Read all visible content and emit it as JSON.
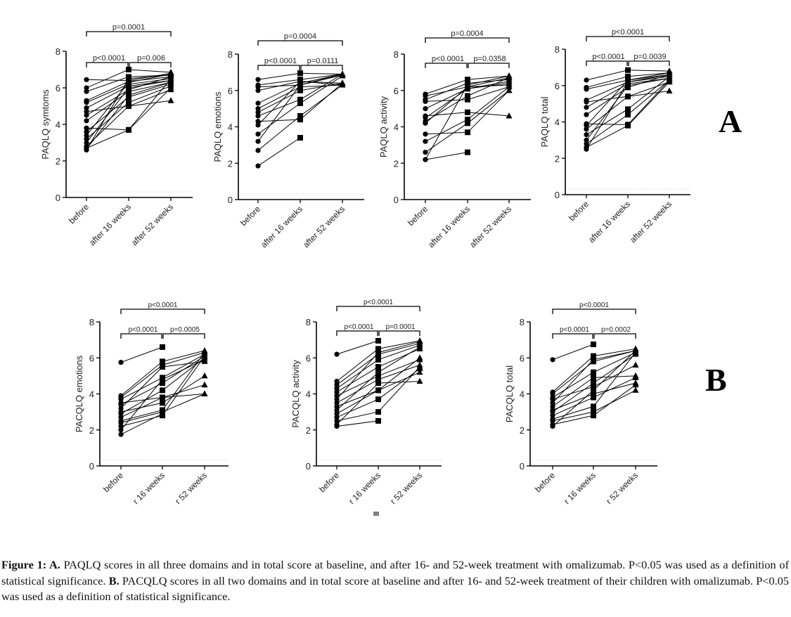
{
  "figure": {
    "panel_letters": {
      "A": "A",
      "B": "B"
    },
    "caption": {
      "prefix": "Figure 1: A.",
      "part_a": " PAQLQ scores in all three domains and in total score at baseline, and after 16- and 52-week treatment with omalizumab. P<0.05 was used as a definition of statistical significance. ",
      "b_label": "B.",
      "part_b": " PACQLQ scores in all two domains and in total score at baseline and after 16- and 52-week treatment of their children with omalizumab. P<0.05 was used as a definition of statistical significance."
    }
  },
  "chart_data": [
    {
      "id": "A1",
      "group": "A",
      "type": "line",
      "ylabel": "PAQLQ symtoms",
      "categories": [
        "before",
        "after 16 weeks",
        "after 52 weeks"
      ],
      "ylim": [
        0,
        8
      ],
      "yticks": [
        0,
        2,
        4,
        6,
        8
      ],
      "pvalues": {
        "overall": "p=0.0001",
        "first": "p<0.0001",
        "second": "p=0.006"
      },
      "series": [
        [
          6.45,
          6.4,
          6.8
        ],
        [
          6.0,
          7.0,
          6.85
        ],
        [
          5.8,
          6.6,
          6.7
        ],
        [
          5.3,
          6.35,
          6.6
        ],
        [
          5.2,
          6.2,
          6.5
        ],
        [
          4.9,
          6.1,
          6.4
        ],
        [
          4.7,
          5.0,
          5.3
        ],
        [
          4.5,
          5.9,
          6.6
        ],
        [
          4.2,
          5.8,
          6.3
        ],
        [
          3.8,
          3.7,
          6.0
        ],
        [
          3.6,
          5.5,
          6.2
        ],
        [
          3.4,
          6.3,
          6.75
        ],
        [
          3.2,
          5.2,
          6.1
        ],
        [
          3.0,
          6.0,
          6.4
        ],
        [
          2.8,
          5.0,
          5.9
        ],
        [
          2.7,
          3.7,
          6.5
        ],
        [
          2.6,
          6.5,
          6.7
        ],
        [
          2.65,
          5.6,
          6.3
        ]
      ]
    },
    {
      "id": "A2",
      "group": "A",
      "type": "line",
      "ylabel": "PAQLQ emotions",
      "categories": [
        "before",
        "after 16 weeks",
        "after 52 weeks"
      ],
      "ylim": [
        0,
        8
      ],
      "yticks": [
        0,
        2,
        4,
        6,
        8
      ],
      "pvalues": {
        "overall": "p=0.0004",
        "first": "p<0.0001",
        "second": "p=0.0111"
      },
      "series": [
        [
          6.6,
          6.95,
          6.9
        ],
        [
          6.3,
          6.6,
          6.9
        ],
        [
          6.2,
          6.3,
          6.85
        ],
        [
          6.0,
          6.5,
          6.4
        ],
        [
          5.3,
          6.4,
          6.9
        ],
        [
          5.0,
          6.2,
          6.3
        ],
        [
          4.8,
          6.0,
          6.4
        ],
        [
          4.6,
          5.5,
          6.9
        ],
        [
          4.3,
          4.4,
          6.4
        ],
        [
          4.1,
          6.5,
          6.3
        ],
        [
          3.6,
          5.3,
          6.8
        ],
        [
          3.2,
          6.3,
          6.9
        ],
        [
          2.7,
          4.6,
          6.3
        ],
        [
          1.85,
          3.4,
          null
        ]
      ]
    },
    {
      "id": "A3",
      "group": "A",
      "type": "line",
      "ylabel": "PAQLQ activity",
      "categories": [
        "before",
        "after 16 weeks",
        "after 52 weeks"
      ],
      "ylim": [
        0,
        8
      ],
      "yticks": [
        0,
        2,
        4,
        6,
        8
      ],
      "pvalues": {
        "overall": "p=0.0004",
        "first": "p<0.0001",
        "second": "p=0.0358"
      },
      "series": [
        [
          5.8,
          6.6,
          6.8
        ],
        [
          5.7,
          6.2,
          6.7
        ],
        [
          5.5,
          6.4,
          6.6
        ],
        [
          5.4,
          5.5,
          6.2
        ],
        [
          5.0,
          6.1,
          6.5
        ],
        [
          4.6,
          4.8,
          4.6
        ],
        [
          4.5,
          6.1,
          6.4
        ],
        [
          4.3,
          5.7,
          6.7
        ],
        [
          4.2,
          6.2,
          6.3
        ],
        [
          3.6,
          3.7,
          6.0
        ],
        [
          3.2,
          4.4,
          6.2
        ],
        [
          2.6,
          4.2,
          6.0
        ],
        [
          2.2,
          2.6,
          null
        ],
        [
          2.2,
          6.3,
          6.8
        ]
      ]
    },
    {
      "id": "A4",
      "group": "A",
      "type": "line",
      "ylabel": "PAQLQ total",
      "categories": [
        "before",
        "after 16 weeks",
        "after 52 weeks"
      ],
      "ylim": [
        0,
        8
      ],
      "yticks": [
        0,
        2,
        4,
        6,
        8
      ],
      "pvalues": {
        "overall": "p<0.0001",
        "first": "p<0.0001",
        "second": "p=0.0039"
      },
      "series": [
        [
          6.3,
          6.85,
          6.8
        ],
        [
          5.9,
          6.5,
          6.7
        ],
        [
          5.8,
          6.3,
          6.6
        ],
        [
          5.2,
          6.2,
          6.5
        ],
        [
          5.1,
          5.4,
          5.7
        ],
        [
          4.8,
          6.1,
          6.4
        ],
        [
          4.4,
          5.9,
          6.6
        ],
        [
          3.9,
          3.85,
          6.3
        ],
        [
          3.8,
          6.3,
          6.7
        ],
        [
          3.6,
          5.4,
          6.2
        ],
        [
          3.3,
          4.7,
          6.5
        ],
        [
          3.0,
          6.0,
          6.4
        ],
        [
          2.8,
          4.4,
          6.3
        ],
        [
          2.6,
          3.8,
          6.2
        ],
        [
          2.5,
          6.2,
          6.6
        ]
      ]
    },
    {
      "id": "B1",
      "group": "B",
      "type": "line",
      "ylabel": "PACQLQ emotions",
      "categories": [
        "before",
        "r 16 weeks",
        "r 52 weeks"
      ],
      "ylim": [
        0,
        8
      ],
      "yticks": [
        0,
        2,
        4,
        6,
        8
      ],
      "pvalues": {
        "overall": "p<0.0001",
        "first": "p<0.0001",
        "second": "p=0.0005"
      },
      "series": [
        [
          5.75,
          6.6,
          null
        ],
        [
          3.9,
          5.8,
          6.4
        ],
        [
          3.8,
          5.6,
          6.3
        ],
        [
          3.7,
          4.9,
          6.2
        ],
        [
          3.5,
          3.8,
          4.0
        ],
        [
          3.4,
          4.6,
          6.1
        ],
        [
          3.2,
          5.5,
          5.8
        ],
        [
          3.0,
          3.5,
          5.0
        ],
        [
          2.9,
          4.2,
          6.0
        ],
        [
          2.7,
          3.8,
          4.5
        ],
        [
          2.5,
          3.1,
          6.3
        ],
        [
          2.4,
          3.0,
          4.0
        ],
        [
          2.2,
          2.8,
          6.1
        ],
        [
          2.0,
          4.8,
          5.9
        ],
        [
          1.75,
          2.9,
          null
        ]
      ]
    },
    {
      "id": "B2",
      "group": "B",
      "type": "line",
      "ylabel": "PACQLQ activity",
      "categories": [
        "before",
        "r 16 weeks",
        "r 52 weeks"
      ],
      "ylim": [
        0,
        8
      ],
      "yticks": [
        0,
        2,
        4,
        6,
        8
      ],
      "pvalues": {
        "overall": "p<0.0001",
        "first": "p<0.0001",
        "second": "p=0.0001"
      },
      "series": [
        [
          6.2,
          6.95,
          null
        ],
        [
          4.7,
          6.5,
          6.95
        ],
        [
          4.5,
          6.2,
          6.8
        ],
        [
          4.3,
          5.9,
          6.7
        ],
        [
          4.1,
          5.5,
          6.5
        ],
        [
          3.9,
          5.0,
          5.9
        ],
        [
          3.7,
          6.3,
          6.9
        ],
        [
          3.5,
          4.8,
          5.6
        ],
        [
          3.3,
          4.2,
          5.2
        ],
        [
          3.1,
          5.2,
          6.6
        ],
        [
          2.9,
          4.2,
          6.0
        ],
        [
          2.7,
          3.7,
          5.4
        ],
        [
          2.5,
          3.0,
          5.5
        ],
        [
          2.3,
          4.6,
          4.7
        ],
        [
          2.2,
          2.5,
          null
        ]
      ]
    },
    {
      "id": "B3",
      "group": "B",
      "type": "line",
      "ylabel": "PACQLQ total",
      "categories": [
        "before",
        "r 16 weeks",
        "r 52 weeks"
      ],
      "ylim": [
        0,
        8
      ],
      "yticks": [
        0,
        2,
        4,
        6,
        8
      ],
      "pvalues": {
        "overall": "p<0.0001",
        "first": "p<0.0001",
        "second": "p=0.0002"
      },
      "series": [
        [
          5.9,
          6.75,
          null
        ],
        [
          4.1,
          6.1,
          6.5
        ],
        [
          4.0,
          5.8,
          6.4
        ],
        [
          3.8,
          5.2,
          6.3
        ],
        [
          3.7,
          4.4,
          5.6
        ],
        [
          3.5,
          5.9,
          6.4
        ],
        [
          3.3,
          4.9,
          5.0
        ],
        [
          3.1,
          4.0,
          4.6
        ],
        [
          3.0,
          4.6,
          6.2
        ],
        [
          2.8,
          3.8,
          4.9
        ],
        [
          2.6,
          3.3,
          6.3
        ],
        [
          2.5,
          3.0,
          4.2
        ],
        [
          2.3,
          2.8,
          4.5
        ],
        [
          2.2,
          4.2,
          6.4
        ]
      ]
    }
  ]
}
